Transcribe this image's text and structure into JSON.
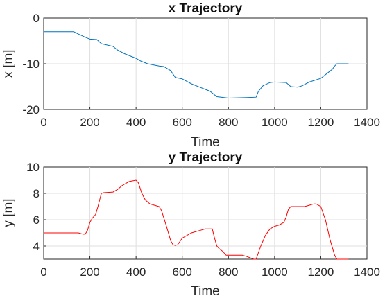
{
  "chart_data": [
    {
      "type": "line",
      "title": "x Trajectory",
      "xlabel": "Time",
      "ylabel": "x [m]",
      "xlim": [
        0,
        1400
      ],
      "ylim": [
        -20,
        0
      ],
      "xticks": [
        "0",
        "200",
        "400",
        "600",
        "800",
        "1000",
        "1200",
        "1400"
      ],
      "yticks": [
        "-20",
        "-10",
        "0"
      ],
      "grid": true,
      "color": "#0072bd",
      "series": [
        {
          "x": [
            0,
            50,
            100,
            130,
            150,
            180,
            200,
            230,
            250,
            300,
            320,
            350,
            400,
            420,
            450,
            500,
            520,
            550,
            570,
            600,
            640,
            680,
            720,
            750,
            800,
            880,
            920,
            930,
            950,
            980,
            1000,
            1050,
            1070,
            1100,
            1120,
            1150,
            1200,
            1230,
            1250,
            1260,
            1270,
            1300,
            1320
          ],
          "y": [
            -3.0,
            -3.0,
            -3.0,
            -3.0,
            -3.5,
            -4.2,
            -4.6,
            -4.7,
            -5.6,
            -6.2,
            -7.0,
            -7.8,
            -8.8,
            -9.4,
            -10.0,
            -10.5,
            -10.6,
            -11.5,
            -13.0,
            -13.3,
            -14.4,
            -15.2,
            -16.0,
            -17.2,
            -17.5,
            -17.4,
            -17.3,
            -16.0,
            -14.8,
            -14.1,
            -14.0,
            -14.1,
            -15.0,
            -15.1,
            -14.8,
            -14.0,
            -13.2,
            -12.0,
            -11.2,
            -10.5,
            -10.0,
            -10.0,
            -10.0
          ]
        }
      ]
    },
    {
      "type": "line",
      "title": "y Trajectory",
      "xlabel": "Time",
      "ylabel": "y [m]",
      "xlim": [
        0,
        1400
      ],
      "ylim": [
        3,
        10
      ],
      "xticks": [
        "0",
        "200",
        "400",
        "600",
        "800",
        "1000",
        "1200",
        "1400"
      ],
      "yticks": [
        "4",
        "6",
        "8",
        "10"
      ],
      "grid": true,
      "color": "#ff0000",
      "series": [
        {
          "x": [
            0,
            50,
            100,
            150,
            170,
            180,
            190,
            200,
            210,
            225,
            235,
            245,
            250,
            260,
            300,
            320,
            340,
            370,
            400,
            410,
            425,
            440,
            460,
            480,
            500,
            510,
            530,
            550,
            560,
            570,
            580,
            600,
            640,
            680,
            700,
            730,
            740,
            750,
            760,
            775,
            790,
            800,
            830,
            860,
            880,
            910,
            920,
            940,
            960,
            980,
            1000,
            1020,
            1040,
            1050,
            1060,
            1070,
            1100,
            1130,
            1150,
            1170,
            1180,
            1200,
            1220,
            1240,
            1260,
            1270,
            1320
          ],
          "y": [
            5.0,
            5.0,
            5.0,
            5.0,
            4.9,
            4.9,
            5.2,
            5.8,
            6.1,
            6.4,
            7.0,
            7.7,
            8.0,
            8.05,
            8.1,
            8.3,
            8.6,
            8.9,
            9.0,
            8.8,
            8.0,
            7.5,
            7.2,
            7.1,
            7.0,
            6.7,
            5.6,
            4.4,
            4.1,
            4.05,
            4.1,
            4.6,
            5.0,
            5.2,
            5.3,
            5.3,
            4.6,
            4.0,
            3.8,
            3.6,
            3.3,
            3.3,
            3.3,
            3.3,
            3.2,
            3.0,
            3.0,
            4.0,
            4.8,
            5.3,
            5.5,
            5.6,
            5.8,
            6.2,
            6.8,
            7.0,
            7.0,
            7.0,
            7.1,
            7.2,
            7.2,
            7.0,
            6.0,
            4.5,
            3.3,
            3.0,
            3.0
          ]
        }
      ]
    }
  ]
}
